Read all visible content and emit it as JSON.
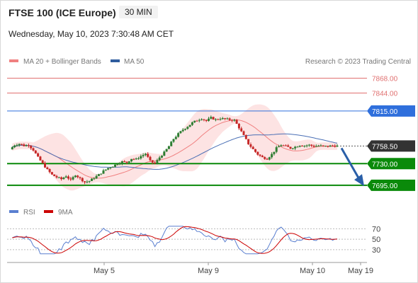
{
  "header": {
    "title": "FTSE 100 (ICE Europe)",
    "timeframe": "30 MIN",
    "datetime": "Wednesday, May 10, 2023 7:30:48 AM CET"
  },
  "legend": {
    "ma20": "MA 20 + Bollinger Bands",
    "ma50": "MA 50",
    "rsi": "RSI",
    "rsi_ma": "9MA"
  },
  "copyright": "Research © 2023 Trading Central",
  "colors": {
    "up": "#2e7d32",
    "down": "#c62828",
    "ma20": "#f08080",
    "ma50": "#4a6fb5",
    "bollinger_fill": "#fde3e3",
    "resistance": "#e07070",
    "pivot": "#2f6fdc",
    "support": "#0a8a0a",
    "current": "#333333",
    "arrow": "#2a5fa8",
    "rsi": "#5a7fd0",
    "rsi_ma": "#cc0000"
  },
  "chart_data": {
    "type": "candlestick",
    "x_ticks": [
      "May 5",
      "May 9",
      "May 10",
      "May 19"
    ],
    "y_range": [
      7672,
      7880
    ],
    "levels": [
      {
        "id": "r2",
        "value": 7868.0,
        "label": "7868.00",
        "kind": "resistance"
      },
      {
        "id": "r1",
        "value": 7844.0,
        "label": "7844.00",
        "kind": "resistance"
      },
      {
        "id": "pivot",
        "value": 7815.0,
        "label": "7815.00",
        "kind": "pivot"
      },
      {
        "id": "current",
        "value": 7758.5,
        "label": "7758.50",
        "kind": "current"
      },
      {
        "id": "s1",
        "value": 7730.0,
        "label": "7730.00",
        "kind": "support"
      },
      {
        "id": "s2",
        "value": 7695.0,
        "label": "7695.00",
        "kind": "support"
      }
    ],
    "close_path": [
      7753,
      7760,
      7762,
      7759,
      7760,
      7752,
      7740,
      7730,
      7720,
      7712,
      7708,
      7705,
      7710,
      7703,
      7712,
      7706,
      7700,
      7702,
      7707,
      7712,
      7718,
      7723,
      7726,
      7730,
      7733,
      7732,
      7738,
      7737,
      7742,
      7746,
      7734,
      7730,
      7740,
      7748,
      7758,
      7770,
      7778,
      7785,
      7790,
      7796,
      7800,
      7803,
      7799,
      7804,
      7801,
      7803,
      7802,
      7801,
      7800,
      7788,
      7775,
      7762,
      7753,
      7745,
      7740,
      7738,
      7745,
      7755,
      7760,
      7758,
      7755,
      7757,
      7760,
      7759,
      7760,
      7758,
      7759,
      7758,
      7758,
      7759,
      7758.5
    ],
    "rsi": {
      "levels": [
        70,
        50,
        30
      ],
      "x_range": [
        0,
        70
      ]
    }
  }
}
